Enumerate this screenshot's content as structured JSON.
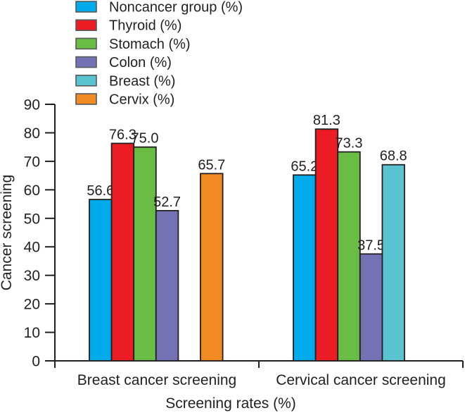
{
  "chart_data": {
    "type": "bar",
    "title": "",
    "xlabel": "Screening rates (%)",
    "ylabel": "Cancer screening",
    "ylim": [
      0,
      90
    ],
    "yticks": [
      0,
      10,
      20,
      30,
      40,
      50,
      60,
      70,
      80,
      90
    ],
    "grid": false,
    "legend_position": "top-left",
    "categories": [
      "Breast cancer screening",
      "Cervical cancer screening"
    ],
    "series": [
      {
        "name": "Noncancer group (%)",
        "color": "#00ABEB",
        "values": [
          56.6,
          65.2
        ]
      },
      {
        "name": "Thyroid (%)",
        "color": "#EC1C24",
        "values": [
          76.3,
          81.3
        ]
      },
      {
        "name": "Stomach (%)",
        "color": "#69BD45",
        "values": [
          75.0,
          73.3
        ]
      },
      {
        "name": "Colon (%)",
        "color": "#7472B4",
        "values": [
          52.7,
          37.5
        ]
      },
      {
        "name": "Breast (%)",
        "color": "#59C4CF",
        "values": [
          null,
          68.8
        ]
      },
      {
        "name": "Cervix (%)",
        "color": "#F18A21",
        "values": [
          65.7,
          null
        ]
      }
    ],
    "value_labels": [
      [
        "56.6",
        "76.3",
        "75.0",
        "52.7",
        null,
        "65.7"
      ],
      [
        "65.2",
        "81.3",
        "73.3",
        "37.5",
        "68.8",
        null
      ]
    ]
  },
  "colors": {
    "axis": "#231F20",
    "text": "#231F20",
    "bar_outline": "#231F20",
    "legend_swatch_border": "#58595B",
    "background": "#ffffff"
  }
}
